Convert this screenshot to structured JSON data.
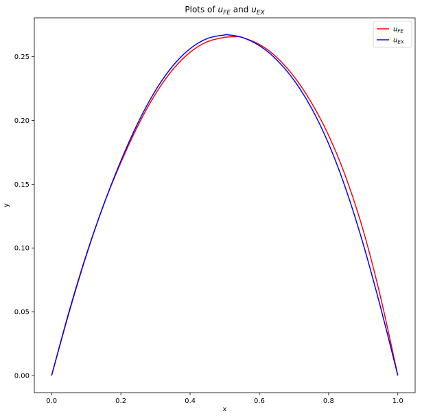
{
  "chart_data": {
    "type": "line",
    "title": {
      "prefix": "Plots of ",
      "sym1": "u",
      "sub1": "FE",
      "middle": " and ",
      "sym2": "u",
      "sub2": "EX"
    },
    "xlabel": "x",
    "ylabel": "y",
    "xlim": [
      -0.05,
      1.05
    ],
    "ylim": [
      -0.0135,
      0.2805
    ],
    "xticks": [
      0.0,
      0.2,
      0.4,
      0.6,
      0.8,
      1.0
    ],
    "xtick_labels": [
      "0.0",
      "0.2",
      "0.4",
      "0.6",
      "0.8",
      "1.0"
    ],
    "yticks": [
      0.0,
      0.05,
      0.1,
      0.15,
      0.2,
      0.25
    ],
    "ytick_labels": [
      "0.00",
      "0.05",
      "0.10",
      "0.15",
      "0.20",
      "0.25"
    ],
    "grid": false,
    "legend_position": "top-right",
    "series": [
      {
        "name": {
          "sym": "u",
          "sub": "FE"
        },
        "color": "#ff0000",
        "x": [
          0.0,
          0.05,
          0.1,
          0.15,
          0.2,
          0.25,
          0.3,
          0.35,
          0.4,
          0.45,
          0.5,
          0.53,
          0.55,
          0.6,
          0.65,
          0.7,
          0.75,
          0.8,
          0.85,
          0.9,
          0.95,
          1.0
        ],
        "y": [
          0.0,
          0.0489,
          0.0939,
          0.1337,
          0.167,
          0.1963,
          0.2208,
          0.2399,
          0.2535,
          0.2618,
          0.2652,
          0.2657,
          0.2652,
          0.2597,
          0.2496,
          0.2345,
          0.2142,
          0.1884,
          0.1554,
          0.1138,
          0.0616,
          0.0
        ]
      },
      {
        "name": {
          "sym": "u",
          "sub": "EX"
        },
        "color": "#0000ff",
        "x": [
          0.0,
          0.05,
          0.1,
          0.15,
          0.2,
          0.25,
          0.3,
          0.35,
          0.4,
          0.45,
          0.5,
          0.51,
          0.55,
          0.6,
          0.65,
          0.7,
          0.75,
          0.8,
          0.85,
          0.9,
          0.95,
          1.0
        ],
        "y": [
          0.0,
          0.0497,
          0.0945,
          0.1336,
          0.1683,
          0.1985,
          0.2235,
          0.2428,
          0.2563,
          0.2643,
          0.2671,
          0.2672,
          0.2652,
          0.2587,
          0.2476,
          0.2316,
          0.21,
          0.1818,
          0.1461,
          0.103,
          0.0536,
          0.0
        ]
      }
    ]
  }
}
